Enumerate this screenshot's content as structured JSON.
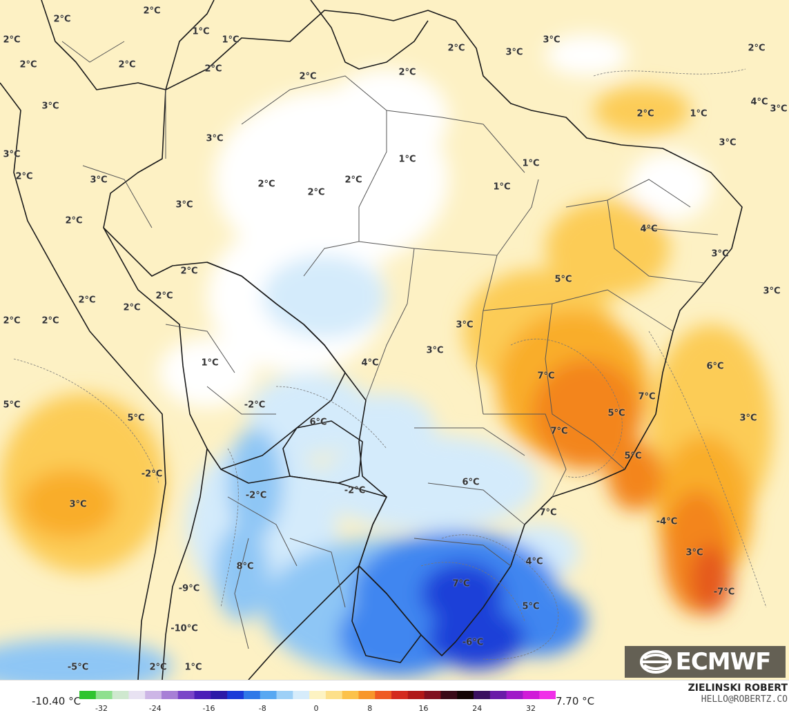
{
  "map": {
    "field_colors": {
      "very_cold": "#1f3fd8",
      "cold": "#3f86f0",
      "cool": "#8ec6f5",
      "slightly_cool": "#d4ebfb",
      "neutral": "#ffffff",
      "slightly_warm": "#fcefb9",
      "warm_light": "#fde3a0",
      "warm": "#fccc56",
      "hot": "#f9ad2a",
      "very_hot": "#f3851f",
      "extreme": "#e55a1c"
    },
    "labels": [
      {
        "text": "2°C",
        "id": "l1"
      },
      {
        "text": "2°C",
        "id": "l2"
      },
      {
        "text": "2°C",
        "id": "l3"
      },
      {
        "text": "1°C",
        "id": "l4"
      },
      {
        "text": "1°C",
        "id": "l5"
      },
      {
        "text": "2°C",
        "id": "l6"
      },
      {
        "text": "2°C",
        "id": "l7"
      },
      {
        "text": "2°C",
        "id": "l8"
      },
      {
        "text": "2°C",
        "id": "l9"
      },
      {
        "text": "2°C",
        "id": "l10"
      },
      {
        "text": "2°C",
        "id": "l11"
      },
      {
        "text": "3°C",
        "id": "l12"
      },
      {
        "text": "3°C",
        "id": "l13"
      },
      {
        "text": "2°C",
        "id": "l14"
      },
      {
        "text": "2°C",
        "id": "l15"
      },
      {
        "text": "1°C",
        "id": "l16"
      },
      {
        "text": "4°C",
        "id": "l17"
      },
      {
        "text": "3°C",
        "id": "l18"
      },
      {
        "text": "3°C",
        "id": "l19"
      },
      {
        "text": "3°C",
        "id": "l20"
      },
      {
        "text": "3°C",
        "id": "l21"
      },
      {
        "text": "3°C",
        "id": "l22"
      },
      {
        "text": "2°C",
        "id": "l23"
      },
      {
        "text": "2°C",
        "id": "l24"
      },
      {
        "text": "2°C",
        "id": "l25"
      },
      {
        "text": "1°C",
        "id": "l26"
      },
      {
        "text": "1°C",
        "id": "l27"
      },
      {
        "text": "1°C",
        "id": "l28"
      },
      {
        "text": "2°C",
        "id": "l29"
      },
      {
        "text": "3°C",
        "id": "l30"
      },
      {
        "text": "3°C",
        "id": "l31"
      },
      {
        "text": "2°C",
        "id": "l32"
      },
      {
        "text": "4°C",
        "id": "l33"
      },
      {
        "text": "3°C",
        "id": "l34"
      },
      {
        "text": "5°C",
        "id": "l35"
      },
      {
        "text": "2°C",
        "id": "l36"
      },
      {
        "text": "2°C",
        "id": "l37"
      },
      {
        "text": "2°C",
        "id": "l38"
      },
      {
        "text": "2°C",
        "id": "l39"
      },
      {
        "text": "2°C",
        "id": "l40"
      },
      {
        "text": "2°C",
        "id": "l41"
      },
      {
        "text": "3°C",
        "id": "l42"
      },
      {
        "text": "3°C",
        "id": "l43"
      },
      {
        "text": "1°C",
        "id": "l44"
      },
      {
        "text": "3°C",
        "id": "l45"
      },
      {
        "text": "4°C",
        "id": "l46"
      },
      {
        "text": "6°C",
        "id": "l47"
      },
      {
        "text": "7°C",
        "id": "l48"
      },
      {
        "text": "7°C",
        "id": "l49"
      },
      {
        "text": "5°C",
        "id": "l50"
      },
      {
        "text": "5°C",
        "id": "l51"
      },
      {
        "text": "5°C",
        "id": "l52"
      },
      {
        "text": "3°C",
        "id": "l53"
      },
      {
        "text": "-2°C",
        "id": "l54"
      },
      {
        "text": "6°C",
        "id": "l55"
      },
      {
        "text": "7°C",
        "id": "l56"
      },
      {
        "text": "5°C",
        "id": "l57"
      },
      {
        "text": "-2°C",
        "id": "l58"
      },
      {
        "text": "-2°C",
        "id": "l59"
      },
      {
        "text": "-2°C",
        "id": "l60"
      },
      {
        "text": "6°C",
        "id": "l61"
      },
      {
        "text": "3°C",
        "id": "l62"
      },
      {
        "text": "7°C",
        "id": "l63"
      },
      {
        "text": "-4°C",
        "id": "l64"
      },
      {
        "text": "8°C",
        "id": "l65"
      },
      {
        "text": "3°C",
        "id": "l66"
      },
      {
        "text": "4°C",
        "id": "l67"
      },
      {
        "text": "-9°C",
        "id": "l68"
      },
      {
        "text": "7°C",
        "id": "l69"
      },
      {
        "text": "-7°C",
        "id": "l70"
      },
      {
        "text": "5°C",
        "id": "l71"
      },
      {
        "text": "-10°C",
        "id": "l72"
      },
      {
        "text": "-6°C",
        "id": "l73"
      },
      {
        "text": "-5°C",
        "id": "l74"
      },
      {
        "text": "2°C",
        "id": "l75"
      },
      {
        "text": "1°C",
        "id": "l76"
      }
    ]
  },
  "logo": {
    "text": "ECMWF"
  },
  "legend": {
    "min": "-10.40 °C",
    "max": "7.70 °C",
    "ticks": [
      "-32",
      "-24",
      "-16",
      "-8",
      "0",
      "8",
      "16",
      "24",
      "32"
    ],
    "colors": [
      "#2ec42e",
      "#8fe08f",
      "#cfe8cf",
      "#e8e2f2",
      "#cdb6e6",
      "#a77fd6",
      "#7a45c8",
      "#4b1fb8",
      "#2c1aa8",
      "#1a3ad8",
      "#2f78e8",
      "#57a8f2",
      "#9dd0f7",
      "#d6ecfb",
      "#fdf3c2",
      "#fde08a",
      "#fcc24a",
      "#f8962a",
      "#ef5a22",
      "#d42a1e",
      "#b01818",
      "#801020",
      "#3a0a18",
      "#140404",
      "#3a1060",
      "#6a1aa8",
      "#a018c8",
      "#d01ad8",
      "#f030e8"
    ]
  },
  "credit": {
    "name": "ZIELINSKI ROBERT",
    "email": "HELLO@ROBERTZ.CO"
  }
}
